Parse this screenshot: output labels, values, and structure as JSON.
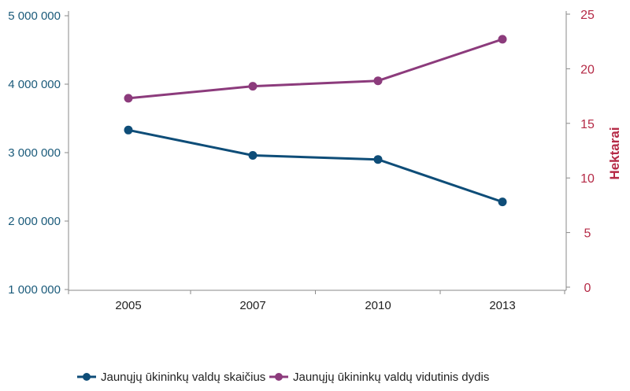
{
  "chart_data": {
    "type": "line",
    "categories": [
      "2005",
      "2007",
      "2010",
      "2013"
    ],
    "series": [
      {
        "name": "Jaunųjų ūkininkų valdų skaičius",
        "axis": "left",
        "color": "#0e4d78",
        "values": [
          3330000,
          2960000,
          2900000,
          2280000
        ]
      },
      {
        "name": "Jaunųjų ūkininkų valdų vidutinis dydis",
        "axis": "right",
        "color": "#8c3b7c",
        "values": [
          17.3,
          18.4,
          18.9,
          22.7
        ]
      }
    ],
    "y_left": {
      "label": "",
      "ticks": [
        "5 000 000",
        "4 000 000",
        "3 000 000",
        "2 000 000",
        "1 000 000"
      ],
      "tick_values": [
        5000000,
        4000000,
        3000000,
        2000000,
        1000000
      ],
      "range": [
        1000000,
        5000000
      ],
      "color": "#1a5a7a"
    },
    "y_right": {
      "label": "Hektarai",
      "ticks": [
        "25",
        "20",
        "15",
        "10",
        "5",
        "0"
      ],
      "tick_values": [
        25,
        20,
        15,
        10,
        5,
        0
      ],
      "range": [
        0,
        25
      ],
      "color": "#b52a46"
    },
    "grid": false,
    "legend_position": "bottom"
  }
}
